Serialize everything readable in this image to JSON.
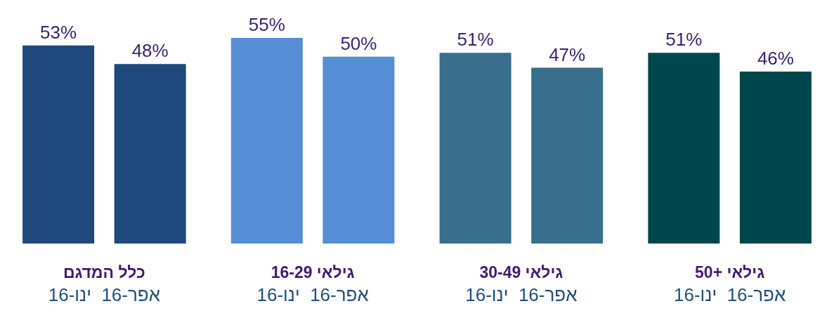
{
  "chart_data": {
    "type": "bar",
    "categories": [
      "כלל המדגם",
      "גילאי 16-29",
      "גילאי 30-49",
      "גילאי +50"
    ],
    "series": [
      {
        "name": "ינו-16",
        "colors": [
          "#1f497d",
          "#558ed5",
          "#376f8c",
          "#00474d"
        ],
        "values": [
          53,
          55,
          51,
          51
        ],
        "value_labels": [
          "53%",
          "55%",
          "51%",
          "51%"
        ]
      },
      {
        "name": "אפר-16",
        "colors": [
          "#1f497d",
          "#558ed5",
          "#376f8c",
          "#00474d"
        ],
        "values": [
          48,
          50,
          47,
          46
        ],
        "value_labels": [
          "48%",
          "50%",
          "47%",
          "46%"
        ]
      }
    ],
    "grid": false,
    "legend": false
  }
}
